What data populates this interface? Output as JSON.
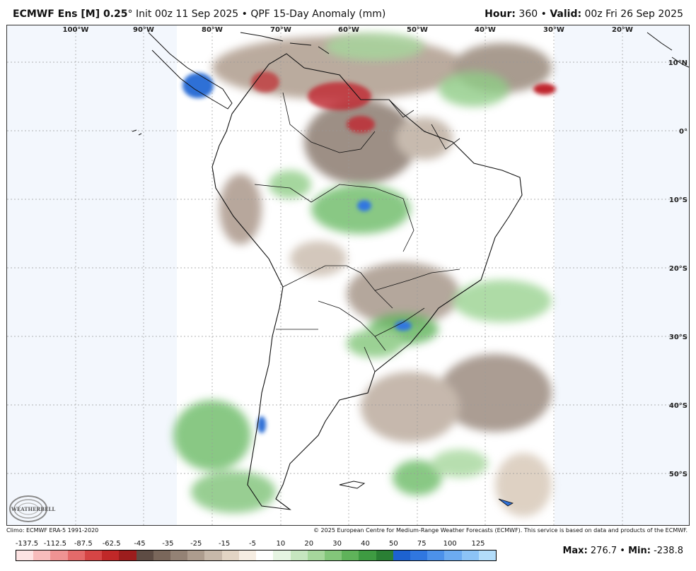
{
  "header": {
    "model": "ECMWF Ens [M] 0.25",
    "degree": "°",
    "init": "Init 00z 11 Sep 2025",
    "bullet": "•",
    "product": "QPF 15-Day Anomaly (mm)",
    "hour_label": "Hour:",
    "hour_value": "360",
    "valid_label": "Valid:",
    "valid_value": "00z Fri 26 Sep 2025"
  },
  "map": {
    "region": "South America",
    "longitude_labels": [
      "100°W",
      "90°W",
      "80°W",
      "70°W",
      "60°W",
      "50°W",
      "40°W",
      "30°W",
      "20°W"
    ],
    "latitude_labels": [
      "10°N",
      "0°",
      "10°S",
      "20°S",
      "30°S",
      "40°S",
      "50°S"
    ],
    "colors": {
      "ocean_bg": "#f3f7fd",
      "land": "#ffffff",
      "dry_brown": "#8c7a6b",
      "wet_green": "#4aa04a",
      "very_wet_blue": "#2f6fd6",
      "very_dry_red": "#c0282f"
    }
  },
  "logo": {
    "text": "WEATHERBELL"
  },
  "footer": {
    "climo": "Climo: ECMWF ERA-5 1991-2020",
    "copyright": "© 2025 European Centre for Medium-Range Weather Forecasts (ECMWF). This service is based on data and products of the ECMWF."
  },
  "colorbar": {
    "labels": [
      "-137.5",
      "-112.5",
      "-87.5",
      "-62.5",
      "-45",
      "-35",
      "-25",
      "-15",
      "-5",
      "10",
      "20",
      "30",
      "40",
      "50",
      "75",
      "100",
      "125"
    ],
    "colors": [
      "#fde3e3",
      "#f7bcbc",
      "#ef9393",
      "#e46a6a",
      "#d54545",
      "#c02828",
      "#9c1d1d",
      "#5e4c44",
      "#7a675b",
      "#948275",
      "#ad9c8e",
      "#c7b8aa",
      "#e2d4c4",
      "#f6ede2",
      "#ffffff",
      "#e6f4e2",
      "#c6e6bf",
      "#a6d79c",
      "#83c67a",
      "#5fb35a",
      "#3e9b42",
      "#2a7f34",
      "#1d62d0",
      "#3077e0",
      "#4c91ea",
      "#6cabf1",
      "#8cc3f6",
      "#b3ddfa"
    ]
  },
  "stats": {
    "max_label": "Max:",
    "max_value": "276.7",
    "min_label": "Min:",
    "min_value": "-238.8"
  }
}
